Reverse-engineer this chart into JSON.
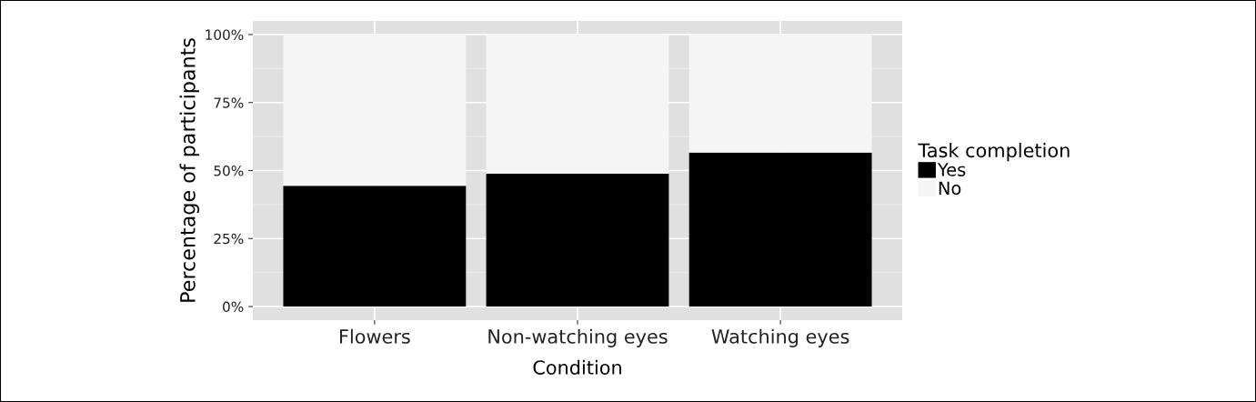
{
  "chart_data": {
    "type": "bar",
    "stacked": true,
    "xlabel": "Condition",
    "ylabel": "Percentage of participants",
    "legend_title": "Task completion",
    "legend": "right",
    "categories": [
      "Flowers",
      "Non-watching eyes",
      "Watching eyes"
    ],
    "series": [
      {
        "name": "Yes",
        "color": "#000000",
        "values": [
          44.4,
          48.8,
          56.6
        ]
      },
      {
        "name": "No",
        "color": "#f5f5f5",
        "values": [
          55.6,
          51.2,
          43.4
        ]
      }
    ],
    "ylim": [
      -5,
      105
    ],
    "yticks": [
      {
        "value": 0,
        "label": "0%"
      },
      {
        "value": 25,
        "label": "25%"
      },
      {
        "value": 50,
        "label": "50%"
      },
      {
        "value": 75,
        "label": "75%"
      },
      {
        "value": 100,
        "label": "100%"
      }
    ],
    "grid": true
  }
}
